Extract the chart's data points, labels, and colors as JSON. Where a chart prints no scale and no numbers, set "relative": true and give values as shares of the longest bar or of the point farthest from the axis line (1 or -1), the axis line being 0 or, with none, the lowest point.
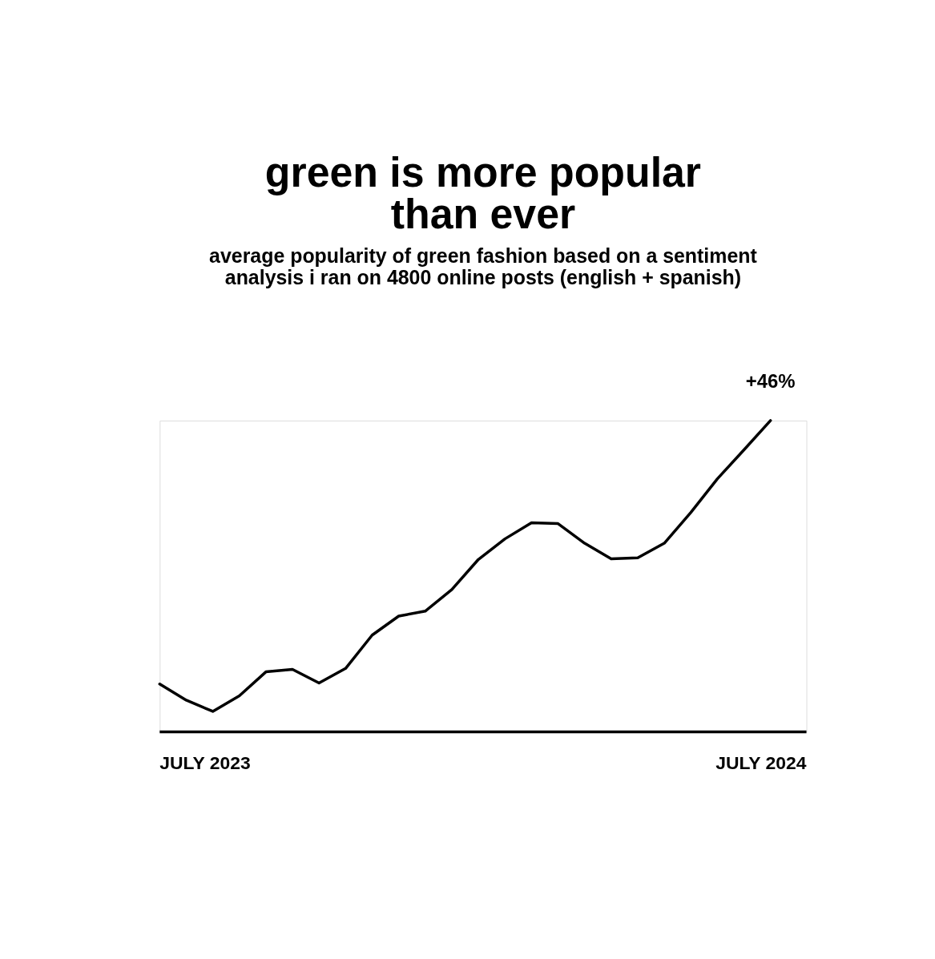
{
  "chart_data": {
    "type": "line",
    "title": [
      "green is more popular",
      "than ever"
    ],
    "subtitle": [
      "average popularity of green fashion based on a sentiment",
      "analysis i ran on 4800 online posts (english + spanish)"
    ],
    "relative": true,
    "grid": false,
    "marker": "none",
    "line_style": "solid",
    "categories": [
      null,
      null,
      null,
      null,
      null,
      null,
      null,
      null,
      null,
      null,
      null,
      null,
      null,
      null,
      null,
      null,
      null,
      null,
      null,
      null,
      null,
      null,
      null,
      null
    ],
    "series": [
      {
        "color": "#000000",
        "values": [
          0.154,
          0.102,
          0.066,
          0.116,
          0.193,
          0.201,
          0.157,
          0.204,
          0.311,
          0.372,
          0.388,
          0.457,
          0.554,
          0.62,
          0.672,
          0.669,
          0.606,
          0.556,
          0.559,
          0.606,
          0.705,
          0.813,
          0.906,
          1.0
        ]
      }
    ],
    "annotations": [
      "+46%",
      "JULY 2023",
      "JULY 2024"
    ]
  }
}
